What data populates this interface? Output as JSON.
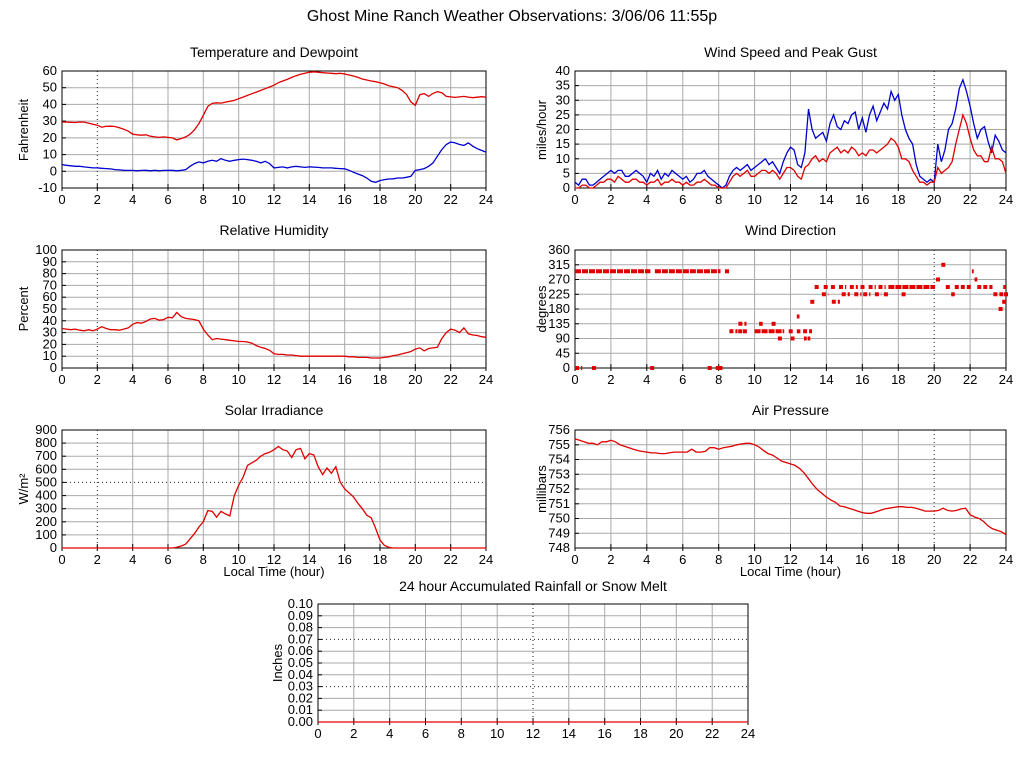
{
  "page_title": "Ghost Mine Ranch Weather Observations: 3/06/06 11:55p",
  "chart_data": [
    {
      "id": "temperature-dewpoint",
      "type": "line",
      "title": "Temperature and Dewpoint",
      "ylabel": "Fahrenheit",
      "xlabel": "",
      "xlim": [
        0,
        24
      ],
      "xtick_step": 2,
      "ylim": [
        -10,
        60
      ],
      "ytick_step": 10,
      "dotted_v": [
        2
      ],
      "series": [
        {
          "name": "temperature",
          "color": "#e00000",
          "x_start": 0,
          "x_step": 0.25,
          "values": [
            29.5,
            29.4,
            29.3,
            29.2,
            29.5,
            29.4,
            28.8,
            28.2,
            27.6,
            26.4,
            26.9,
            27.0,
            26.8,
            26.0,
            25.2,
            24.0,
            22.2,
            21.8,
            21.6,
            21.8,
            21.0,
            20.6,
            20.3,
            20.6,
            20.3,
            20.0,
            18.8,
            19.6,
            20.6,
            22.2,
            24.8,
            28.5,
            33.5,
            38.8,
            40.6,
            41.0,
            40.8,
            41.4,
            41.9,
            42.4,
            43.4,
            44.4,
            45.4,
            46.4,
            47.4,
            48.4,
            49.4,
            50.4,
            51.5,
            53.0,
            54.0,
            55.0,
            56.2,
            57.2,
            58.0,
            58.6,
            59.2,
            59.5,
            59.3,
            59.0,
            58.8,
            58.6,
            58.4,
            58.6,
            58.2,
            57.6,
            57.0,
            56.2,
            55.2,
            54.6,
            54.0,
            53.6,
            53.0,
            52.2,
            51.2,
            50.6,
            50.0,
            48.4,
            46.0,
            41.5,
            39.5,
            45.8,
            46.5,
            44.8,
            46.6,
            47.6,
            47.0,
            44.8,
            44.5,
            44.2,
            44.5,
            44.8,
            44.4,
            44.0,
            44.3,
            44.6,
            44.3
          ]
        },
        {
          "name": "dewpoint",
          "color": "#0000d0",
          "x_start": 0,
          "x_step": 0.25,
          "values": [
            4.0,
            3.6,
            3.3,
            3.0,
            3.0,
            2.6,
            2.3,
            2.0,
            2.0,
            1.8,
            1.6,
            1.4,
            1.0,
            0.8,
            0.6,
            0.5,
            0.5,
            0.3,
            0.5,
            0.6,
            0.3,
            0.6,
            0.3,
            0.5,
            0.5,
            0.6,
            0.3,
            0.6,
            1.0,
            3.0,
            4.6,
            5.6,
            5.0,
            6.0,
            6.6,
            6.0,
            7.6,
            6.6,
            6.0,
            6.6,
            7.0,
            7.3,
            7.0,
            6.6,
            6.0,
            5.0,
            6.0,
            4.6,
            2.0,
            2.3,
            2.6,
            2.0,
            2.6,
            3.0,
            2.6,
            2.3,
            2.6,
            2.5,
            2.3,
            2.0,
            2.0,
            2.0,
            1.8,
            1.6,
            1.5,
            0.6,
            -0.6,
            -1.6,
            -2.6,
            -4.0,
            -6.0,
            -6.6,
            -5.6,
            -5.0,
            -4.6,
            -4.5,
            -4.0,
            -4.0,
            -3.6,
            -3.0,
            0.5,
            1.0,
            1.6,
            3.0,
            5.0,
            9.0,
            13.0,
            16.0,
            17.5,
            17.0,
            16.0,
            15.5,
            17.0,
            15.0,
            13.5,
            12.5,
            11.5
          ]
        }
      ]
    },
    {
      "id": "wind-speed-gust",
      "type": "line",
      "title": "Wind Speed and Peak Gust",
      "ylabel": "miles/hour",
      "xlabel": "",
      "xlim": [
        0,
        24
      ],
      "xtick_step": 2,
      "ylim": [
        0,
        40
      ],
      "ytick_step": 5,
      "dotted_v": [
        20
      ],
      "series": [
        {
          "name": "peak_gust",
          "color": "#0000d0",
          "x_start": 0,
          "x_step": 0.2,
          "values": [
            2,
            1,
            3,
            3,
            1,
            1,
            2,
            3,
            4,
            5,
            6,
            5,
            6,
            6,
            4,
            4,
            5,
            6,
            5,
            4,
            2,
            5,
            4,
            6,
            3,
            5,
            4,
            6,
            5,
            4,
            3,
            4,
            2,
            3,
            5,
            5,
            6,
            4,
            3,
            2,
            1,
            0,
            1,
            4,
            6,
            7,
            6,
            7,
            8,
            6,
            7,
            8,
            9,
            10,
            8,
            9,
            7,
            5,
            9,
            12,
            14,
            13,
            8,
            7,
            12,
            27,
            20,
            17,
            18,
            19,
            16,
            22,
            25,
            21,
            20,
            23,
            22,
            25,
            26,
            20,
            24,
            19,
            25,
            28,
            23,
            26,
            29,
            27,
            33,
            30,
            32,
            25,
            20,
            17,
            15,
            8,
            4,
            3,
            2,
            3,
            2,
            15,
            9,
            13,
            20,
            22,
            27,
            34,
            37,
            33,
            28,
            22,
            17,
            20,
            21,
            16,
            12,
            18,
            16,
            13,
            12
          ]
        },
        {
          "name": "wind_speed",
          "color": "#e00000",
          "x_start": 0,
          "x_step": 0.2,
          "values": [
            0,
            0,
            1,
            1,
            0,
            0,
            1,
            2,
            2,
            3,
            3,
            2,
            4,
            3,
            2,
            2,
            3,
            3,
            2,
            2,
            1,
            2,
            2,
            3,
            1,
            2,
            2,
            3,
            2,
            2,
            1,
            2,
            1,
            1,
            2,
            2,
            3,
            2,
            1,
            1,
            0,
            0,
            0,
            2,
            4,
            5,
            4,
            5,
            6,
            4,
            4,
            5,
            6,
            6,
            5,
            6,
            5,
            3,
            5,
            7,
            7,
            6,
            4,
            3,
            7,
            8,
            10,
            11,
            9,
            10,
            9,
            12,
            13,
            14,
            12,
            13,
            12,
            14,
            13,
            11,
            12,
            11,
            13,
            13,
            12,
            13,
            14,
            15,
            17,
            16,
            14,
            10,
            10,
            9,
            6,
            4,
            2,
            2,
            1,
            2,
            2,
            7,
            5,
            6,
            7,
            9,
            15,
            20,
            25,
            22,
            17,
            13,
            11,
            11,
            9,
            9,
            14,
            10,
            10,
            9,
            5
          ]
        }
      ]
    },
    {
      "id": "relative-humidity",
      "type": "line",
      "title": "Relative Humidity",
      "ylabel": "Percent",
      "xlabel": "",
      "xlim": [
        0,
        24
      ],
      "xtick_step": 2,
      "ylim": [
        0,
        100
      ],
      "ytick_step": 10,
      "dotted_v": [
        2
      ],
      "series": [
        {
          "name": "relative_humidity",
          "color": "#e00000",
          "x_start": 0,
          "x_step": 0.25,
          "values": [
            33.5,
            33,
            32.5,
            33,
            32,
            31.5,
            32.5,
            31.5,
            33,
            35,
            33.5,
            32.5,
            32.5,
            32,
            33,
            34,
            37,
            38.5,
            38,
            39.5,
            41.5,
            42,
            40.5,
            41,
            43,
            42.5,
            47,
            43.5,
            42,
            41.5,
            41,
            40,
            33,
            28,
            24,
            25,
            24.5,
            24,
            23.5,
            23,
            22.5,
            22.5,
            22,
            21,
            19,
            17.5,
            16.5,
            15,
            12,
            11.5,
            11.5,
            11,
            11,
            10.5,
            10,
            10,
            10,
            10,
            10,
            10,
            10,
            10,
            10,
            10,
            10,
            9.5,
            9.5,
            9,
            9,
            9,
            8.5,
            8.5,
            8.5,
            9,
            9.5,
            10.5,
            11,
            12,
            13,
            14,
            16,
            17,
            14.5,
            16.5,
            17,
            17.5,
            25,
            30,
            33,
            32,
            30,
            34,
            29,
            28,
            27.5,
            26.5,
            26
          ]
        }
      ]
    },
    {
      "id": "wind-direction",
      "type": "scatter",
      "title": "Wind Direction",
      "ylabel": "degrees",
      "xlabel": "",
      "xlim": [
        0,
        24
      ],
      "xtick_step": 2,
      "ylim": [
        0,
        360
      ],
      "ytick_step": 45,
      "dotted_v": [
        20
      ],
      "marker_color": "#e00000",
      "runs": [
        [
          295,
          0,
          4.2
        ],
        [
          295,
          4.45,
          8.1
        ],
        [
          295,
          8.35,
          8.65
        ],
        [
          0,
          0,
          0.4
        ],
        [
          112,
          8.6,
          9.05
        ],
        [
          112,
          9.35,
          9.6
        ],
        [
          112,
          10.0,
          11.65
        ],
        [
          112,
          11.9,
          12.15
        ],
        [
          112,
          12.35,
          12.55
        ],
        [
          112,
          12.7,
          13.2
        ],
        [
          135,
          9.1,
          9.55
        ],
        [
          135,
          10.25,
          10.45
        ],
        [
          135,
          10.95,
          11.25
        ],
        [
          90,
          11.3,
          11.55
        ],
        [
          90,
          12.0,
          12.25
        ],
        [
          90,
          12.75,
          12.9
        ],
        [
          90,
          12.95,
          13.1
        ],
        [
          157,
          12.35,
          12.5
        ],
        [
          202,
          13.1,
          13.35
        ],
        [
          202,
          14.3,
          14.75
        ],
        [
          225,
          13.75,
          14.1
        ],
        [
          225,
          14.85,
          15.3
        ],
        [
          225,
          15.55,
          15.95
        ],
        [
          225,
          16.05,
          16.45
        ],
        [
          225,
          16.7,
          17.05
        ],
        [
          225,
          17.2,
          17.5
        ],
        [
          225,
          20.95,
          21.15
        ],
        [
          225,
          23.3,
          23.85
        ],
        [
          247,
          13.35,
          13.6
        ],
        [
          247,
          13.85,
          14.1
        ],
        [
          247,
          14.25,
          14.55
        ],
        [
          247,
          14.7,
          15.1
        ],
        [
          247,
          15.3,
          15.75
        ],
        [
          247,
          15.9,
          16.2
        ],
        [
          247,
          16.35,
          16.75
        ],
        [
          247,
          16.9,
          17.3
        ],
        [
          247,
          17.45,
          20.05
        ],
        [
          247,
          20.65,
          20.95
        ],
        [
          247,
          21.15,
          22.1
        ],
        [
          247,
          22.4,
          23.25
        ],
        [
          247,
          23.85,
          24.0
        ],
        [
          270,
          20.1,
          20.35
        ],
        [
          270,
          22.25,
          22.4
        ],
        [
          315,
          20.4,
          20.65
        ],
        [
          295,
          22.1,
          22.2
        ]
      ],
      "points": [
        [
          1.05,
          0
        ],
        [
          4.3,
          0
        ],
        [
          7.5,
          0
        ],
        [
          7.95,
          0
        ],
        [
          8.1,
          0
        ],
        [
          9.2,
          112
        ],
        [
          18.3,
          225
        ],
        [
          23.7,
          180
        ],
        [
          23.9,
          202
        ],
        [
          24,
          225
        ]
      ]
    },
    {
      "id": "solar-irradiance",
      "type": "line",
      "title": "Solar Irradiance",
      "ylabel": "W/m²",
      "xlabel": "Local Time (hour)",
      "xlim": [
        0,
        24
      ],
      "xtick_step": 2,
      "ylim": [
        0,
        900
      ],
      "ytick_step": 100,
      "dotted_v": [
        2
      ],
      "dotted_h": [
        500
      ],
      "series": [
        {
          "name": "solar_irradiance",
          "color": "#e00000",
          "x_start": 0,
          "x_step": 0.25,
          "values": [
            0,
            0,
            0,
            0,
            0,
            0,
            0,
            0,
            0,
            0,
            0,
            0,
            0,
            0,
            0,
            0,
            0,
            0,
            0,
            0,
            0,
            0,
            0,
            0,
            0,
            0,
            5,
            15,
            30,
            70,
            110,
            160,
            200,
            285,
            280,
            235,
            280,
            260,
            245,
            400,
            480,
            540,
            630,
            650,
            670,
            700,
            720,
            730,
            750,
            775,
            750,
            740,
            690,
            750,
            760,
            680,
            720,
            710,
            620,
            560,
            610,
            570,
            620,
            500,
            450,
            420,
            390,
            340,
            300,
            250,
            230,
            150,
            60,
            20,
            5,
            0,
            0,
            0,
            0,
            0,
            0,
            0,
            0,
            0,
            0,
            0,
            0,
            0,
            0,
            0,
            0,
            0,
            0,
            0,
            0,
            0,
            0
          ]
        }
      ]
    },
    {
      "id": "air-pressure",
      "type": "line",
      "title": "Air Pressure",
      "ylabel": "millibars",
      "xlabel": "Local Time (hour)",
      "xlim": [
        0,
        24
      ],
      "xtick_step": 2,
      "ylim": [
        748,
        756
      ],
      "ytick_step": 1,
      "dotted_v": [
        20
      ],
      "series": [
        {
          "name": "air_pressure",
          "color": "#e00000",
          "x_start": 0,
          "x_step": 0.25,
          "values": [
            755.4,
            755.3,
            755.2,
            755.1,
            755.1,
            755.0,
            755.2,
            755.2,
            755.3,
            755.2,
            755.0,
            754.9,
            754.8,
            754.7,
            754.6,
            754.55,
            754.5,
            754.45,
            754.45,
            754.4,
            754.4,
            754.45,
            754.5,
            754.5,
            754.5,
            754.5,
            754.7,
            754.5,
            754.5,
            754.55,
            754.8,
            754.8,
            754.7,
            754.8,
            754.85,
            754.9,
            755.0,
            755.05,
            755.1,
            755.1,
            755.0,
            754.85,
            754.6,
            754.4,
            754.3,
            754.1,
            753.9,
            753.8,
            753.7,
            753.6,
            753.4,
            753.1,
            752.7,
            752.3,
            751.95,
            751.7,
            751.45,
            751.25,
            751.1,
            750.85,
            750.8,
            750.7,
            750.6,
            750.5,
            750.4,
            750.35,
            750.35,
            750.45,
            750.55,
            750.65,
            750.7,
            750.75,
            750.8,
            750.8,
            750.75,
            750.75,
            750.7,
            750.6,
            750.5,
            750.5,
            750.5,
            750.55,
            750.7,
            750.55,
            750.5,
            750.55,
            750.65,
            750.7,
            750.25,
            750.1,
            750.0,
            749.8,
            749.5,
            749.3,
            749.2,
            749.1,
            748.9
          ]
        }
      ]
    },
    {
      "id": "rainfall",
      "type": "line",
      "title": "24 hour Accumulated Rainfall or Snow Melt",
      "ylabel": "Inches",
      "xlabel": "",
      "xlim": [
        0,
        24
      ],
      "xtick_step": 2,
      "ylim": [
        0,
        0.1
      ],
      "ytick_step": 0.01,
      "ytick_decimals": 2,
      "dotted_v": [
        12
      ],
      "dotted_h": [
        0.03,
        0.07
      ],
      "series": [
        {
          "name": "accumulated_rainfall",
          "color": "#e00000",
          "x_start": 0,
          "x_step": 12,
          "values": [
            0,
            0,
            0
          ]
        }
      ]
    }
  ]
}
